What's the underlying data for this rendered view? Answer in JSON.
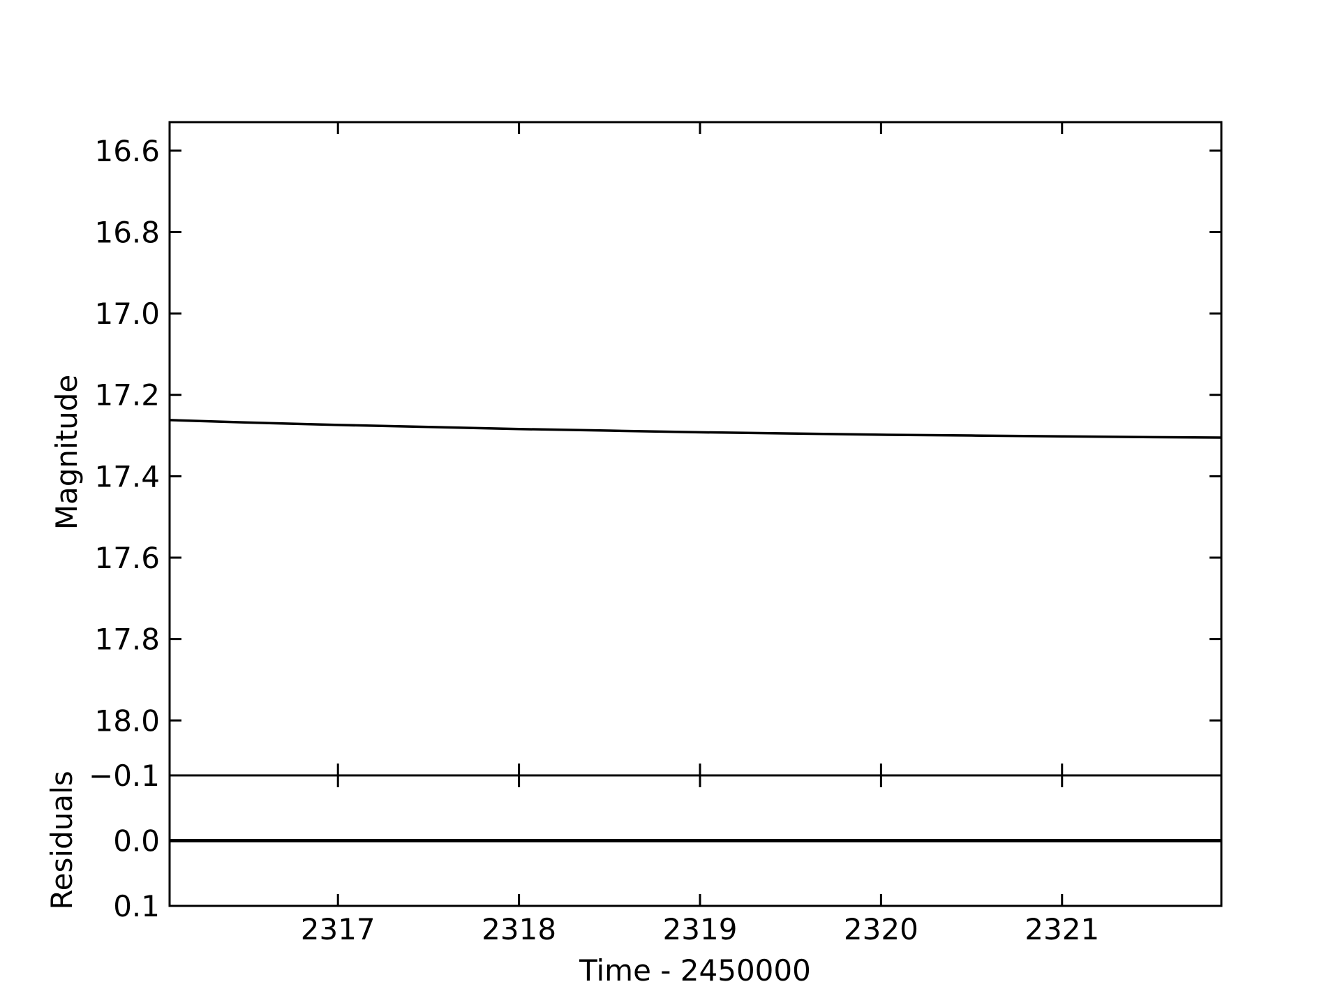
{
  "chart_data": [
    {
      "panel": "main",
      "type": "line",
      "xlabel": "Time - 2450000",
      "ylabel": "Magnitude",
      "xlim": [
        2316.07,
        2321.88
      ],
      "ylim": [
        18.135,
        16.53
      ],
      "y_inverted": true,
      "yticks": [
        16.6,
        16.8,
        17.0,
        17.2,
        17.4,
        17.6,
        17.8,
        18.0
      ],
      "ytick_labels": [
        "16.6",
        "16.8",
        "17.0",
        "17.2",
        "17.4",
        "17.6",
        "17.8",
        "18.0"
      ],
      "xticks": [
        2317,
        2318,
        2319,
        2320,
        2321
      ],
      "grid": false,
      "series": [
        {
          "color": "#000000",
          "x": [
            2316.07,
            2316.5,
            2317.0,
            2317.5,
            2318.0,
            2318.5,
            2319.0,
            2319.5,
            2320.0,
            2320.5,
            2321.0,
            2321.5,
            2321.88
          ],
          "y": [
            17.262,
            17.268,
            17.274,
            17.279,
            17.284,
            17.288,
            17.292,
            17.295,
            17.298,
            17.3,
            17.302,
            17.304,
            17.305
          ]
        }
      ]
    },
    {
      "panel": "residuals",
      "type": "line",
      "xlabel": "Time - 2450000",
      "ylabel": "Residuals",
      "xlim": [
        2316.07,
        2321.88
      ],
      "ylim": [
        0.1,
        -0.1
      ],
      "y_inverted": true,
      "yticks": [
        -0.1,
        0.0,
        0.1
      ],
      "ytick_labels": [
        "−0.1",
        "0.0",
        "0.1"
      ],
      "xticks": [
        2317,
        2318,
        2319,
        2320,
        2321
      ],
      "xtick_labels": [
        "2317",
        "2318",
        "2319",
        "2320",
        "2321"
      ],
      "grid": false,
      "series": [
        {
          "color": "#000000",
          "x": [
            2316.07,
            2321.88
          ],
          "y": [
            0.0,
            0.0
          ]
        }
      ]
    }
  ]
}
